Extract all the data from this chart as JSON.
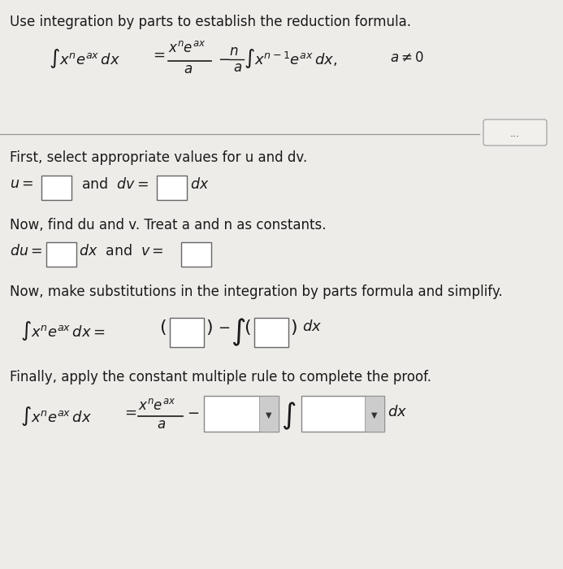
{
  "bg_color": "#eeece9",
  "text_color": "#1a1a1a",
  "box_color": "#ffffff",
  "box_edge": "#555555",
  "dropdown_color": "#d8d8d8",
  "dropdown_arrow": "#333333",
  "title": "Use integration by parts to establish the reduction formula.",
  "s1_text": "First, select appropriate values for u and dv.",
  "s2_text": "Now, find du and v. Treat a and n as constants.",
  "s3_text": "Now, make substitutions in the integration by parts formula and simplify.",
  "s4_text": "Finally, apply the constant multiple rule to complete the proof.",
  "fig_w": 6.93,
  "fig_h": 7.0,
  "dpi": 100
}
